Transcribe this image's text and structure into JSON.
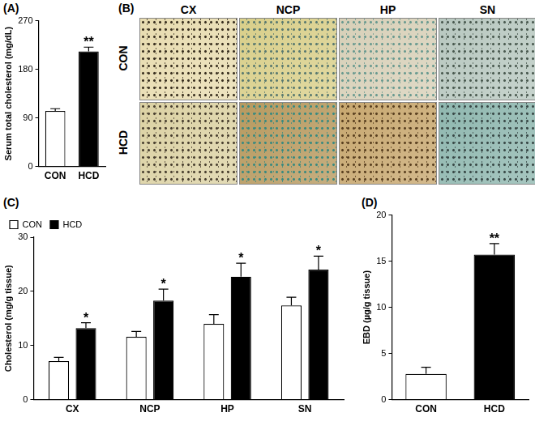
{
  "chart_data": [
    {
      "panel": "(A)",
      "type": "bar",
      "categories": [
        "CON",
        "HCD"
      ],
      "values": [
        103,
        213
      ],
      "errors": [
        4,
        8
      ],
      "significance": [
        null,
        "**"
      ],
      "colors": [
        "#ffffff",
        "#000000"
      ],
      "y_label": "Serum total cholesterol (mg/dL)",
      "ylim": [
        0,
        270
      ],
      "yticks": [
        0,
        90,
        180,
        270
      ],
      "grid": false
    },
    {
      "panel": "(C)",
      "type": "bar",
      "categories": [
        "CX",
        "NCP",
        "HP",
        "SN"
      ],
      "series": [
        {
          "name": "CON",
          "color": "#ffffff",
          "values": [
            7.1,
            11.6,
            14.0,
            17.4
          ],
          "errors": [
            0.7,
            1.0,
            1.7,
            1.5
          ]
        },
        {
          "name": "HCD",
          "color": "#000000",
          "values": [
            13.2,
            18.3,
            22.7,
            24.0
          ],
          "errors": [
            1.0,
            2.1,
            2.5,
            2.5
          ],
          "significance": [
            "*",
            "*",
            "*",
            "*"
          ]
        }
      ],
      "y_label": "Cholesterol (mg/g tissue)",
      "ylim": [
        0,
        30
      ],
      "yticks": [
        0,
        10,
        20,
        30
      ],
      "grid": false,
      "legend": "top-left"
    },
    {
      "panel": "(D)",
      "type": "bar",
      "categories": [
        "CON",
        "HCD"
      ],
      "values": [
        2.8,
        15.7
      ],
      "errors": [
        0.7,
        1.2
      ],
      "significance": [
        null,
        "**"
      ],
      "colors": [
        "#ffffff",
        "#000000"
      ],
      "y_label": "EBD (µg/g tissue)",
      "ylim": [
        0,
        20
      ],
      "yticks": [
        0,
        5,
        10,
        15,
        20
      ],
      "grid": false
    }
  ],
  "image_panel": {
    "panel": "(B)",
    "columns": [
      "CX",
      "NCP",
      "HP",
      "SN"
    ],
    "rows": [
      "CON",
      "HCD"
    ]
  }
}
